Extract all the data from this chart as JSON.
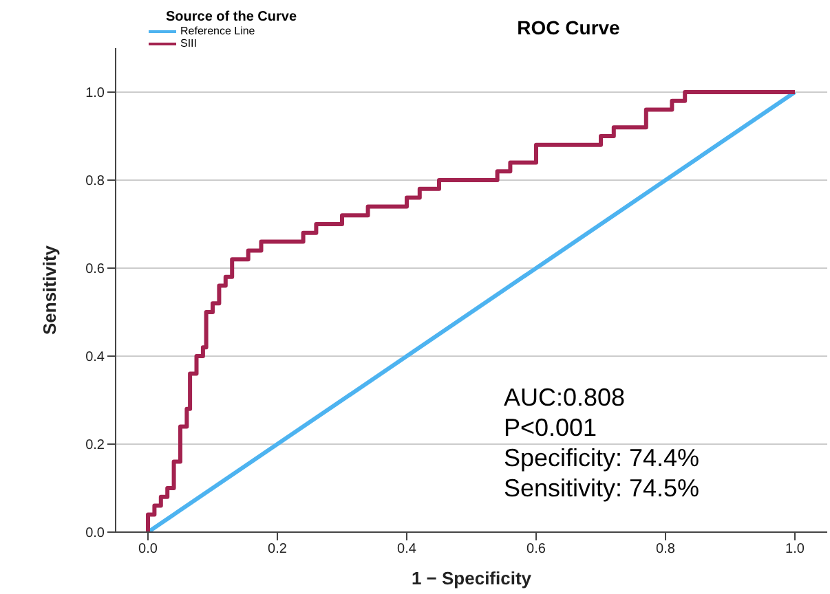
{
  "chart_data": {
    "type": "line",
    "title": "ROC Curve",
    "xlabel": "1 − Specificity",
    "ylabel": "Sensitivity",
    "legend_title": "Source of the Curve",
    "legend": "top left",
    "grid": "y",
    "marker": "none",
    "line_style": "solid",
    "xlim": [
      -0.05,
      1.05
    ],
    "ylim": [
      0,
      1.1
    ],
    "xticks": [
      {
        "value": 0,
        "label": "0.0"
      },
      {
        "value": 0.2,
        "label": "0.2"
      },
      {
        "value": 0.4,
        "label": "0.4"
      },
      {
        "value": 0.6,
        "label": "0.6"
      },
      {
        "value": 0.8,
        "label": "0.8"
      },
      {
        "value": 1,
        "label": "1.0"
      }
    ],
    "yticks": [
      {
        "value": 0,
        "label": "0.0"
      },
      {
        "value": 0.2,
        "label": "0.2"
      },
      {
        "value": 0.4,
        "label": "0.4"
      },
      {
        "value": 0.6,
        "label": "0.6"
      },
      {
        "value": 0.8,
        "label": "0.8"
      },
      {
        "value": 1,
        "label": "1.0"
      }
    ],
    "series": [
      {
        "name": "Reference Line",
        "color": "#4db3f0",
        "x": [
          0,
          1
        ],
        "values": [
          0,
          1
        ]
      },
      {
        "name": "SIII",
        "color": "#a3224f",
        "x": [
          0,
          0,
          0.01,
          0.01,
          0.02,
          0.02,
          0.03,
          0.03,
          0.04,
          0.04,
          0.05,
          0.05,
          0.06,
          0.06,
          0.065,
          0.065,
          0.075,
          0.075,
          0.085,
          0.085,
          0.09,
          0.09,
          0.1,
          0.1,
          0.11,
          0.11,
          0.12,
          0.12,
          0.13,
          0.13,
          0.155,
          0.155,
          0.175,
          0.175,
          0.24,
          0.24,
          0.26,
          0.26,
          0.3,
          0.3,
          0.34,
          0.34,
          0.4,
          0.4,
          0.42,
          0.42,
          0.45,
          0.45,
          0.54,
          0.54,
          0.56,
          0.56,
          0.6,
          0.6,
          0.7,
          0.7,
          0.72,
          0.72,
          0.77,
          0.77,
          0.81,
          0.81,
          0.83,
          0.83,
          1.0
        ],
        "values": [
          0,
          0.04,
          0.04,
          0.06,
          0.06,
          0.08,
          0.08,
          0.1,
          0.1,
          0.16,
          0.16,
          0.24,
          0.24,
          0.28,
          0.28,
          0.36,
          0.36,
          0.4,
          0.4,
          0.42,
          0.42,
          0.5,
          0.5,
          0.52,
          0.52,
          0.56,
          0.56,
          0.58,
          0.58,
          0.62,
          0.62,
          0.64,
          0.64,
          0.66,
          0.66,
          0.68,
          0.68,
          0.7,
          0.7,
          0.72,
          0.72,
          0.74,
          0.74,
          0.76,
          0.76,
          0.78,
          0.78,
          0.8,
          0.8,
          0.82,
          0.82,
          0.84,
          0.84,
          0.88,
          0.88,
          0.9,
          0.9,
          0.92,
          0.92,
          0.96,
          0.96,
          0.98,
          0.98,
          1.0,
          1.0
        ]
      }
    ],
    "annotations": [
      "AUC:0.808",
      "P<0.001",
      "Specificity: 74.4%",
      "Sensitivity: 74.5%"
    ]
  }
}
